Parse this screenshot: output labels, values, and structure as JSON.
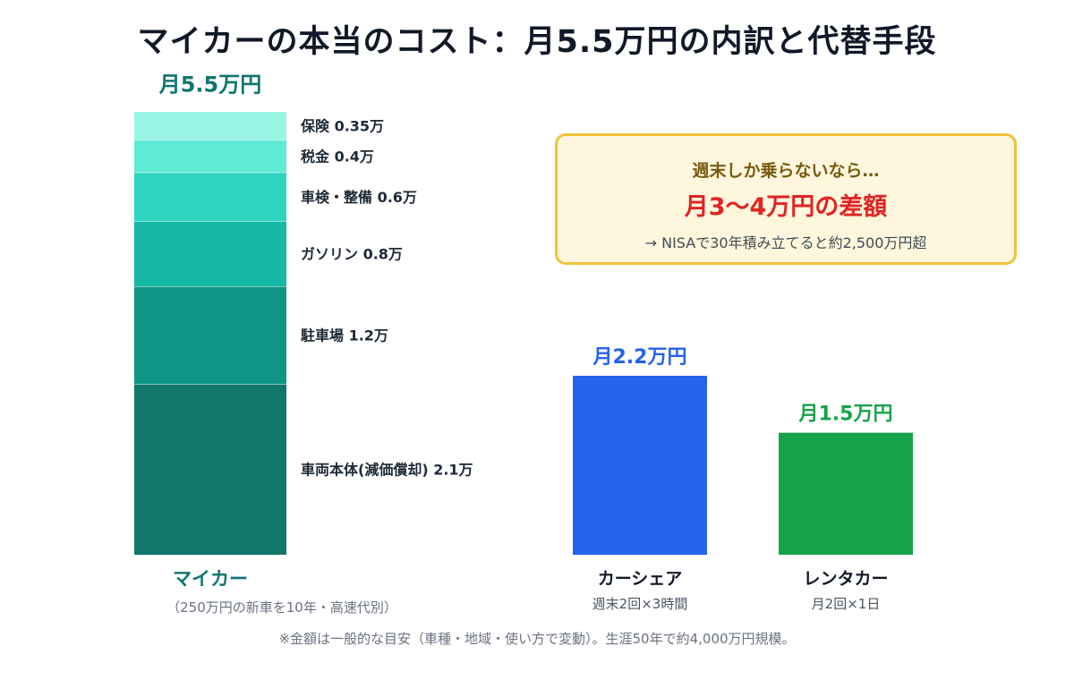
{
  "title": "マイカーの本当のコスト：月5.5万円の内訳と代替手段",
  "callout": {
    "line1": "週末しか乗らないなら…",
    "line2": "月3〜4万円の差額",
    "line3": "→ NISAで30年積み立てると約2,500万円超"
  },
  "footnote": "※金額は一般的な目安（車種・地域・使い方で変動）。生涯50年で約4,000万円規模。",
  "chart_data": {
    "type": "bar",
    "unit": "万円",
    "stacked": {
      "name": "マイカー",
      "sublabel": "（250万円の新車を10年・高速代別）",
      "total": 5.5,
      "total_label": "月5.5万円",
      "segments": [
        {
          "label": "車両本体(減価償却) 2.1万",
          "value": 2.1,
          "color": "#11776a"
        },
        {
          "label": "駐車場 1.2万",
          "value": 1.2,
          "color": "#0f9585"
        },
        {
          "label": "ガソリン 0.8万",
          "value": 0.8,
          "color": "#15b8a4"
        },
        {
          "label": "車検・整備 0.6万",
          "value": 0.6,
          "color": "#2dd4bf"
        },
        {
          "label": "税金 0.4万",
          "value": 0.4,
          "color": "#5eead4"
        },
        {
          "label": "保険 0.35万",
          "value": 0.35,
          "color": "#99f6e4"
        }
      ],
      "label_color": "#0f766e"
    },
    "bars": [
      {
        "name": "カーシェア",
        "sublabel": "週末2回×3時間",
        "value": 2.2,
        "value_label": "月2.2万円",
        "color": "#2563eb"
      },
      {
        "name": "レンタカー",
        "sublabel": "月2回×1日",
        "value": 1.5,
        "value_label": "月1.5万円",
        "color": "#16a34a"
      }
    ]
  }
}
